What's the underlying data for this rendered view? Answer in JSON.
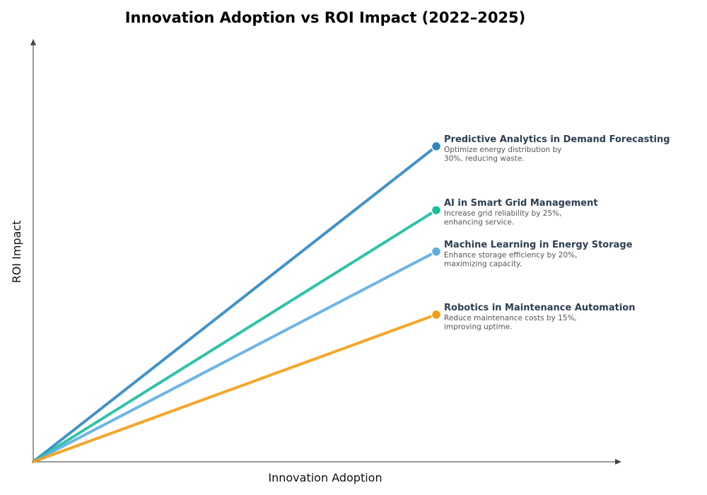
{
  "chart_data": {
    "type": "line",
    "title": "Innovation Adoption vs ROI Impact (2022–2025)",
    "xlabel": "Innovation Adoption",
    "ylabel": "ROI Impact",
    "xlim": [
      0,
      1.46
    ],
    "ylim": [
      0,
      1
    ],
    "grid": false,
    "ticks_shown": false,
    "series": [
      {
        "name": "Predictive Analytics in Demand Forecasting",
        "description": [
          "Optimize energy distribution by",
          "30%, reducing waste."
        ],
        "color": "#2e86c1",
        "x": [
          0,
          1
        ],
        "y": [
          0,
          0.746
        ]
      },
      {
        "name": "AI in Smart Grid Management",
        "description": [
          "Increase grid reliability by 25%,",
          "enhancing service."
        ],
        "color": "#1abc9c",
        "x": [
          0,
          1
        ],
        "y": [
          0,
          0.595
        ]
      },
      {
        "name": "Machine Learning in Energy Storage",
        "description": [
          "Enhance storage efficiency by 20%,",
          "maximizing capacity."
        ],
        "color": "#5dade2",
        "x": [
          0,
          1
        ],
        "y": [
          0,
          0.497
        ]
      },
      {
        "name": "Robotics in Maintenance Automation",
        "description": [
          "Reduce maintenance costs by 15%,",
          "improving uptime."
        ],
        "color": "#f39c12",
        "x": [
          0,
          1
        ],
        "y": [
          0,
          0.348
        ]
      }
    ]
  }
}
